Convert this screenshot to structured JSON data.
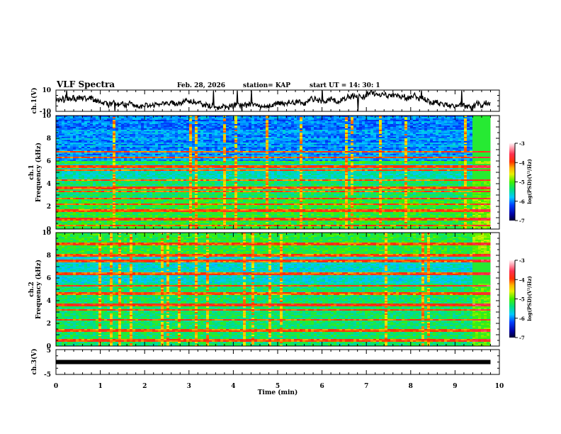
{
  "header": {
    "title": "VLF Spectra",
    "date": "Feb. 28, 2026",
    "station": "station= KAP",
    "start_ut": "start  UT =  14: 30: 1"
  },
  "colors": {
    "line": "#000000",
    "background": "#ffffff"
  },
  "chart_data": [
    {
      "type": "line",
      "name": "ch1-waveform",
      "ylabel": "ch.1(V)",
      "ylim": [
        -10,
        10
      ],
      "yticks": [
        "10",
        "-10"
      ],
      "xlim": [
        0,
        10
      ],
      "data_end_min": 9.8,
      "description_level": "noisy waveform oscillating roughly between -9 and 9 V"
    },
    {
      "type": "heatmap",
      "name": "ch1-spectrogram",
      "ylabel_line1": "ch.1",
      "ylabel_line2": "Frequency  (kHz)",
      "ylim": [
        0,
        10
      ],
      "yticks": [
        "0",
        "2",
        "4",
        "6",
        "8",
        "10"
      ],
      "xlim": [
        0,
        10
      ],
      "data_end_min": 9.8,
      "segment_change_min": 9.35,
      "colorbar": {
        "label": "log(PSD)(V²/Hz)",
        "range": [
          -7,
          -3
        ],
        "ticks": [
          "-3",
          "-4",
          "-5",
          "-6",
          "-7"
        ]
      },
      "bands_khz": [
        0.3,
        0.9,
        1.6,
        2.2,
        2.7,
        3.3,
        3.6,
        4.3,
        5.2,
        5.5,
        6.3,
        6.8
      ],
      "low_level_region_khz": [
        6,
        10
      ]
    },
    {
      "type": "heatmap",
      "name": "ch2-spectrogram",
      "ylabel_line1": "ch.2",
      "ylabel_line2": "Frequency  (kHz)",
      "ylim": [
        0,
        10
      ],
      "yticks": [
        "0",
        "2",
        "4",
        "6",
        "8",
        "10"
      ],
      "xlim": [
        0,
        10
      ],
      "data_end_min": 9.8,
      "segment_change_min": 9.35,
      "colorbar": {
        "label": "log(PSD)(V²/Hz)",
        "range": [
          -7,
          -3
        ],
        "ticks": [
          "-3",
          "-4",
          "-5",
          "-6",
          "-7"
        ]
      },
      "bands_khz": [
        0.5,
        1.4,
        2.3,
        3.2,
        3.6,
        4.6,
        5.3,
        6.4,
        7.5,
        8.0,
        9.0
      ],
      "low_level_region_khz": [
        5.5,
        8
      ]
    },
    {
      "type": "line",
      "name": "ch3-waveform",
      "ylabel": "ch.3(V)",
      "ylim": [
        -5,
        5
      ],
      "yticks": [
        "5",
        "-5"
      ],
      "xlim": [
        0,
        10
      ],
      "data_end_min": 9.8,
      "constant_level_v": 0,
      "xlabel": "Time  (min)",
      "xticks": [
        "0",
        "1",
        "2",
        "3",
        "4",
        "5",
        "6",
        "7",
        "8",
        "9",
        "10"
      ]
    }
  ]
}
